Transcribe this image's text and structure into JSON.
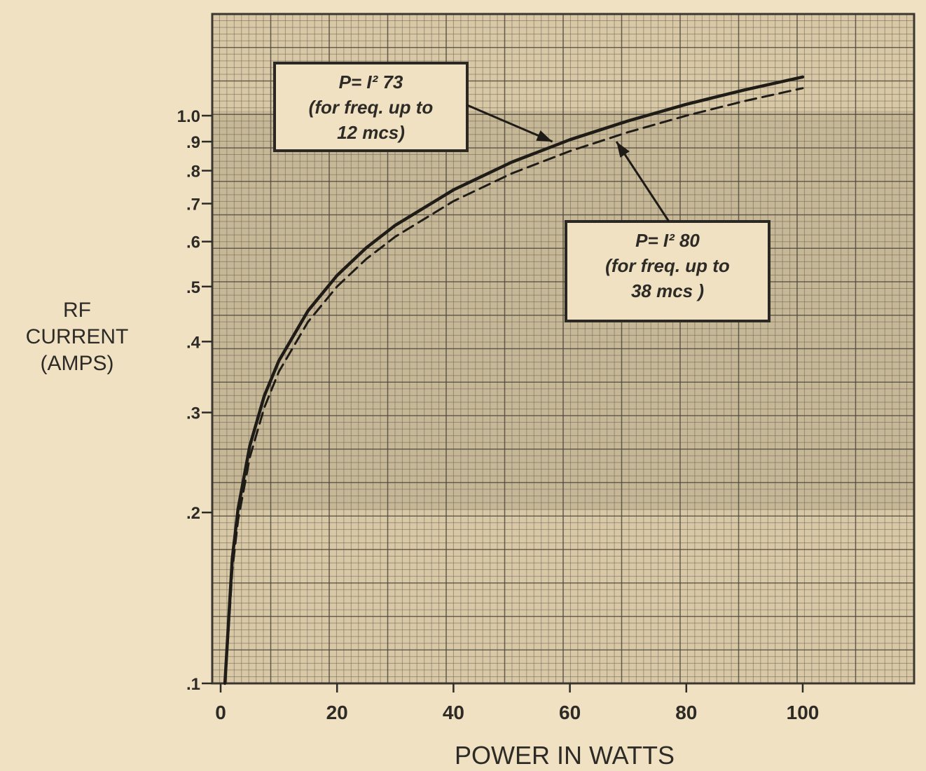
{
  "chart_data": {
    "type": "line",
    "xlabel": "POWER IN WATTS",
    "ylabel_lines": [
      "RF",
      "CURRENT",
      "(AMPS)"
    ],
    "x_ticks": [
      0,
      20,
      40,
      60,
      80,
      100
    ],
    "x_tick_labels": [
      "0",
      "20",
      "40",
      "60",
      "80",
      "100"
    ],
    "xlim": [
      0,
      120
    ],
    "y_scale": "log",
    "y_ticks": [
      0.1,
      0.2,
      0.3,
      0.4,
      0.5,
      0.6,
      0.7,
      0.8,
      0.9,
      1.0
    ],
    "y_tick_labels": [
      ".1",
      ".2",
      ".3",
      ".4",
      ".5",
      ".6",
      ".7",
      ".8",
      ".9",
      "1.0"
    ],
    "ylim": [
      0.1,
      1.4
    ],
    "grid": true,
    "series": [
      {
        "style": "solid",
        "x": [
          0.73,
          2,
          3,
          5,
          7.5,
          10,
          15,
          20,
          25,
          30,
          40,
          50,
          60,
          70,
          80,
          90,
          100
        ],
        "y": [
          0.1,
          0.166,
          0.203,
          0.262,
          0.321,
          0.37,
          0.453,
          0.523,
          0.585,
          0.641,
          0.74,
          0.828,
          0.907,
          0.979,
          1.047,
          1.11,
          1.17
        ]
      },
      {
        "style": "dashed",
        "x": [
          0.8,
          2,
          3,
          5,
          7.5,
          10,
          15,
          20,
          25,
          30,
          40,
          50,
          60,
          70,
          80,
          90,
          100
        ],
        "y": [
          0.1,
          0.158,
          0.194,
          0.25,
          0.306,
          0.354,
          0.433,
          0.5,
          0.559,
          0.612,
          0.707,
          0.791,
          0.866,
          0.935,
          1.0,
          1.061,
          1.118
        ]
      }
    ],
    "annotations": [
      {
        "series": 0,
        "lines": [
          "P= I² 73",
          "(for freq. up to",
          "12 mcs)"
        ],
        "arrow_to": [
          57,
          0.9
        ]
      },
      {
        "series": 1,
        "lines": [
          "P= I² 80",
          "(for freq. up to",
          "38 mcs )"
        ],
        "arrow_to": [
          68,
          0.9
        ]
      }
    ]
  }
}
